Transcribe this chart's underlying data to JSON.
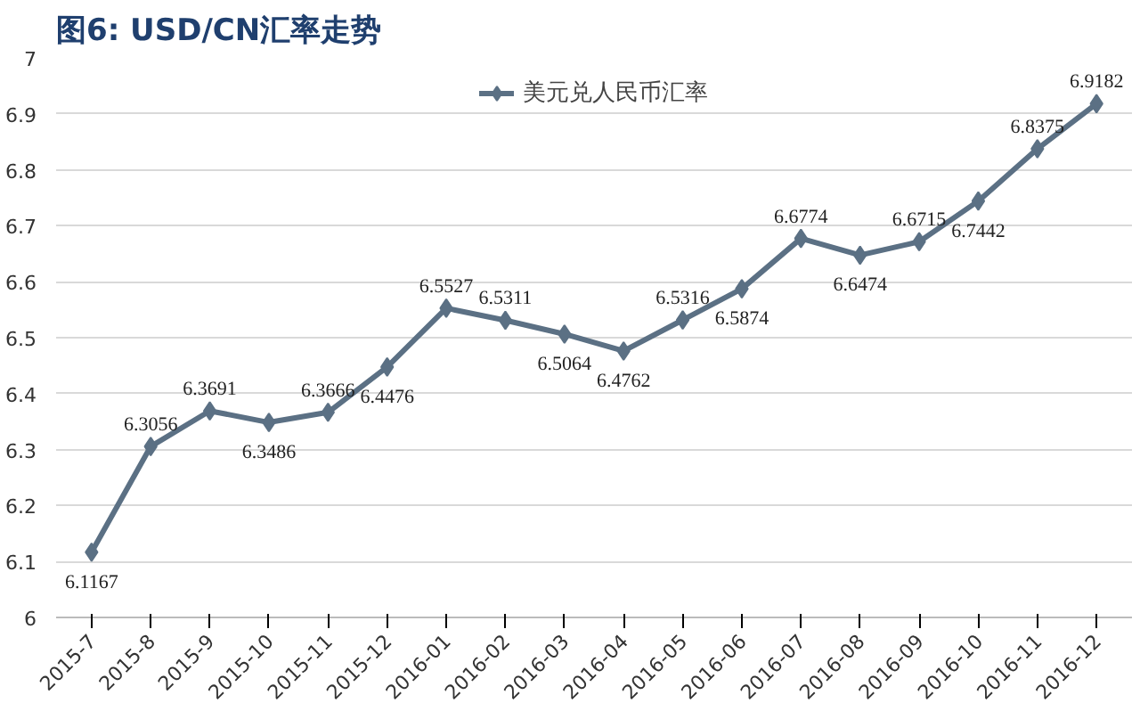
{
  "chart_data": {
    "type": "line",
    "title": "图6: USD/CN汇率走势",
    "categories": [
      "2015-7",
      "2015-8",
      "2015-9",
      "2015-10",
      "2015-11",
      "2015-12",
      "2016-01",
      "2016-02",
      "2016-03",
      "2016-04",
      "2016-05",
      "2016-06",
      "2016-07",
      "2016-08",
      "2016-09",
      "2016-10",
      "2016-11",
      "2016-12"
    ],
    "series": [
      {
        "name": "美元兑人民币汇率",
        "color": "#5b7084",
        "values": [
          6.1167,
          6.3056,
          6.3691,
          6.3486,
          6.3666,
          6.4476,
          6.5527,
          6.5311,
          6.5064,
          6.4762,
          6.5316,
          6.5874,
          6.6774,
          6.6474,
          6.6715,
          6.7442,
          6.8375,
          6.9182
        ]
      }
    ],
    "ylim": [
      6,
      7
    ],
    "yticks": [
      6,
      6.1,
      6.2,
      6.3,
      6.4,
      6.5,
      6.6,
      6.7,
      6.8,
      6.9,
      7
    ],
    "grid": "y",
    "legend": "top",
    "marker": "diamond",
    "line_style": "solid",
    "data_labels": true
  }
}
